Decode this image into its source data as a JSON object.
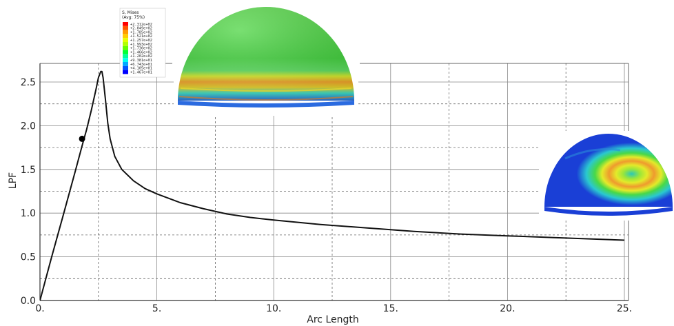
{
  "chart_data": {
    "type": "line",
    "title": "",
    "xlabel": "Arc Length",
    "ylabel": "LPF",
    "xlim": [
      0,
      25
    ],
    "ylim": [
      0,
      2.5
    ],
    "x_ticks": [
      0,
      5,
      10,
      15,
      20,
      25
    ],
    "x_tick_labels": [
      "0.",
      "5.",
      "10.",
      "15.",
      "20.",
      "25."
    ],
    "y_ticks": [
      0,
      0.5,
      1.0,
      1.5,
      2.0,
      2.5
    ],
    "y_tick_labels": [
      "0.0",
      "0.5",
      "1.0",
      "1.5",
      "2.0",
      "2.5"
    ],
    "grid": true,
    "series": [
      {
        "color": "#111111",
        "x": [
          0,
          0.5,
          1.0,
          1.5,
          1.8,
          2.0,
          2.2,
          2.4,
          2.5,
          2.6,
          2.65,
          2.7,
          2.8,
          2.9,
          3.0,
          3.2,
          3.5,
          4.0,
          4.5,
          5.0,
          6.0,
          7.0,
          8.0,
          9.0,
          10.0,
          12.0,
          14.0,
          16.0,
          18.0,
          20.0,
          22.0,
          25.0
        ],
        "y": [
          0,
          0.5,
          0.98,
          1.47,
          1.77,
          1.96,
          2.18,
          2.42,
          2.55,
          2.62,
          2.62,
          2.55,
          2.3,
          2.03,
          1.85,
          1.65,
          1.5,
          1.37,
          1.28,
          1.22,
          1.12,
          1.05,
          0.99,
          0.95,
          0.92,
          0.87,
          0.83,
          0.79,
          0.76,
          0.74,
          0.72,
          0.69
        ]
      }
    ],
    "markers": [
      {
        "x": 1.8,
        "y": 1.85
      }
    ]
  },
  "legend": {
    "title_line1": "S, Mises",
    "title_line2": "(Avg: 75%)",
    "colors": [
      "#ff0000",
      "#ff5500",
      "#ff9900",
      "#ffcc00",
      "#e6ff00",
      "#b3ff00",
      "#66ff00",
      "#00ff33",
      "#00ff99",
      "#00ffee",
      "#00aaff",
      "#0055ff",
      "#0000ff"
    ],
    "values": [
      "+2.312e+02",
      "+2.049e+02",
      "+1.785e+02",
      "+1.521e+02",
      "+1.257e+02",
      "+1.993e+02",
      "+1.730e+02",
      "+1.466e+02",
      "+1.202e+02",
      "+9.381e+01",
      "+6.743e+01",
      "+4.105e+01",
      "+1.467e+01"
    ]
  },
  "insets": {
    "dome_top_colors": {
      "base": "#3fd13a",
      "band_yellow": "#d9ee2a",
      "band_orange": "#f3a42a",
      "band_cyan": "#3fe0c8",
      "bottom_blue": "#2b6be0"
    },
    "dome_right_colors": {
      "base": "#1a3fd6",
      "ring_green": "#48d848",
      "ring_yellow": "#e3ea2a",
      "ring_orange": "#ef9a2e",
      "center_teal": "#2ac8b8"
    }
  }
}
